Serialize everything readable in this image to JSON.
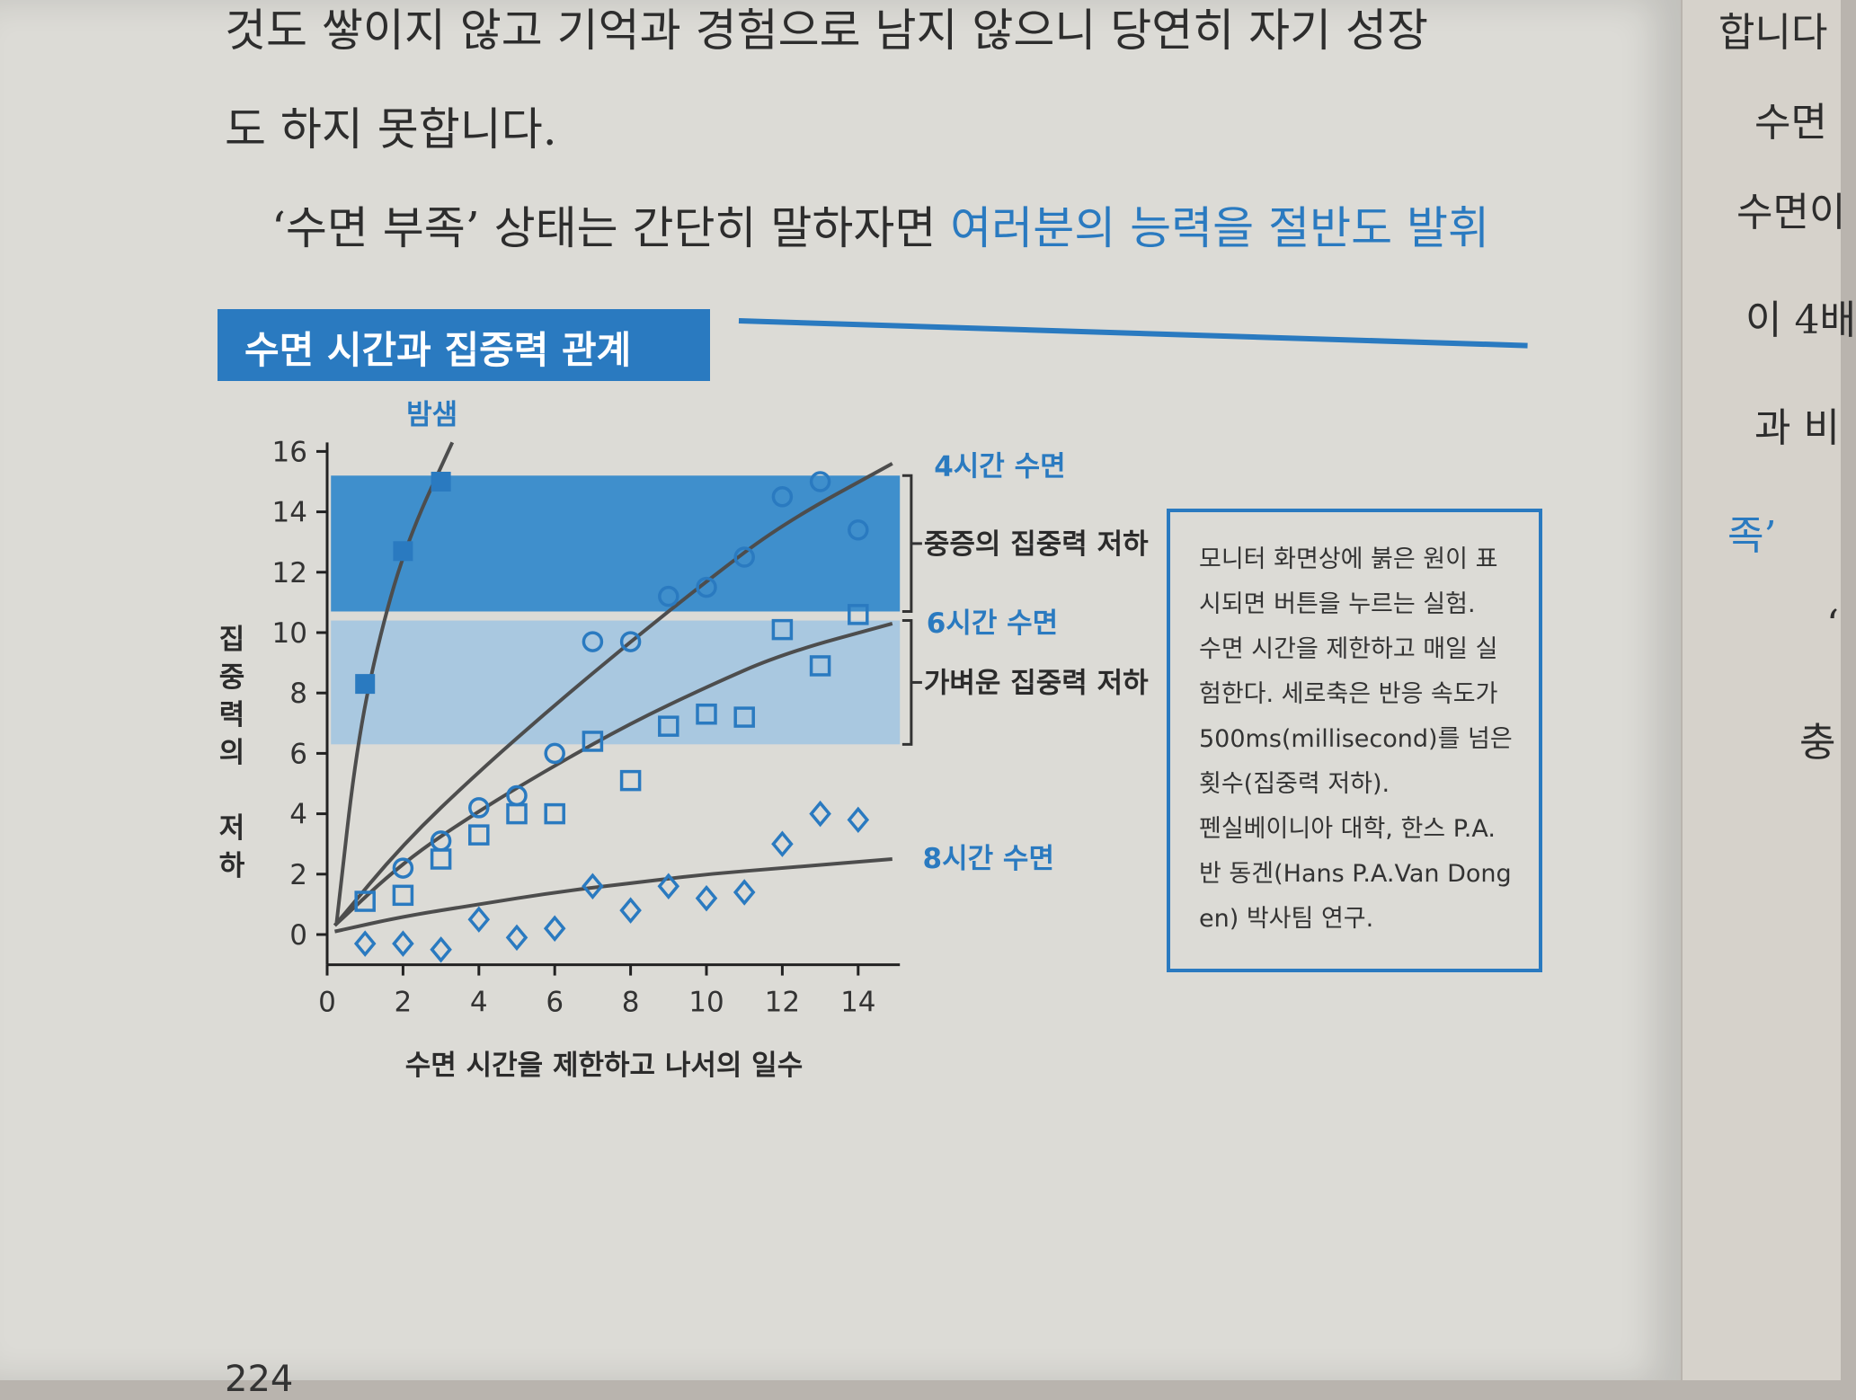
{
  "body_text": {
    "line1": "것도 쌓이지 않고 기억과 경험으로 남지 않으니 당연히 자기 성장",
    "line2": "도 하지 못합니다.",
    "line3_plain": "‘수면 부족’ 상태는 간단히 말하자면",
    "line3_highlight": "여러분의 능력을 절반도 발휘"
  },
  "figure_title": "수면 시간과 집중력 관계",
  "note_lines": [
    "모니터 화면상에 붉은 원이 표",
    "시되면 버튼을 누르는 실험.",
    "수면 시간을 제한하고 매일 실",
    "험한다. 세로축은 반응 속도가",
    "500ms(millisecond)를 넘은",
    "횟수(집중력 저하).",
    "펜실베이니아 대학, 한스 P.A.",
    "반 동겐(Hans P.A.Van Dong",
    "en) 박사팀 연구."
  ],
  "next_page_text": [
    "합니다",
    "수면",
    "수면이",
    "이 4배",
    "과 비",
    "족’",
    "‘",
    "충"
  ],
  "page_number": "224",
  "colors": {
    "accent": "#2a7ac0",
    "band_severe": "#3f8fcc",
    "band_mild": "#a9c8e0",
    "curve": "#4d4d4d"
  },
  "chart_data": {
    "type": "scatter",
    "xlabel": "수면 시간을 제한하고 나서의 일수",
    "ylabel": "집중력의 저하",
    "xlim": [
      0,
      15
    ],
    "ylim": [
      -1,
      16
    ],
    "xticks": [
      "0",
      "2",
      "4",
      "6",
      "8",
      "10",
      "12",
      "14"
    ],
    "yticks": [
      "0",
      "2",
      "4",
      "6",
      "8",
      "10",
      "12",
      "14",
      "16"
    ],
    "bands": [
      {
        "label": "중증의 집중력 저하",
        "y": [
          10.7,
          15.2
        ]
      },
      {
        "label": "가벼운 집중력 저하",
        "y": [
          6.3,
          10.4
        ]
      }
    ],
    "series": [
      {
        "name": "밤샘",
        "marker": "square-filled",
        "points": [
          [
            1,
            8.3
          ],
          [
            2,
            12.7
          ],
          [
            3,
            15.0
          ]
        ]
      },
      {
        "name": "4시간 수면",
        "marker": "circle",
        "points": [
          [
            2,
            2.2
          ],
          [
            3,
            3.1
          ],
          [
            4,
            4.2
          ],
          [
            5,
            4.6
          ],
          [
            6,
            6.0
          ],
          [
            7,
            9.7
          ],
          [
            8,
            9.7
          ],
          [
            9,
            11.2
          ],
          [
            10,
            11.5
          ],
          [
            11,
            12.5
          ],
          [
            12,
            14.5
          ],
          [
            13,
            15.0
          ],
          [
            14,
            13.4
          ]
        ]
      },
      {
        "name": "6시간 수면",
        "marker": "square",
        "points": [
          [
            1,
            1.1
          ],
          [
            2,
            1.3
          ],
          [
            3,
            2.5
          ],
          [
            4,
            3.3
          ],
          [
            5,
            4.0
          ],
          [
            6,
            4.0
          ],
          [
            7,
            6.4
          ],
          [
            8,
            5.1
          ],
          [
            9,
            6.9
          ],
          [
            10,
            7.3
          ],
          [
            11,
            7.2
          ],
          [
            12,
            10.1
          ],
          [
            13,
            8.9
          ],
          [
            14,
            10.6
          ]
        ]
      },
      {
        "name": "8시간 수면",
        "marker": "diamond",
        "points": [
          [
            1,
            -0.3
          ],
          [
            2,
            -0.3
          ],
          [
            3,
            -0.5
          ],
          [
            4,
            0.5
          ],
          [
            5,
            -0.1
          ],
          [
            6,
            0.2
          ],
          [
            7,
            1.6
          ],
          [
            8,
            0.8
          ],
          [
            9,
            1.6
          ],
          [
            10,
            1.2
          ],
          [
            11,
            1.4
          ],
          [
            12,
            3.0
          ],
          [
            13,
            4.0
          ],
          [
            14,
            3.8
          ]
        ]
      }
    ],
    "trend_lines": [
      {
        "name": "밤샘",
        "points": [
          [
            0.25,
            0.4
          ],
          [
            0.8,
            6.5
          ],
          [
            1.5,
            10.5
          ],
          [
            2.2,
            13.3
          ],
          [
            3.3,
            16.3
          ]
        ]
      },
      {
        "name": "4시간 수면",
        "points": [
          [
            0.2,
            0.3
          ],
          [
            2,
            3.0
          ],
          [
            4,
            5.4
          ],
          [
            6,
            7.6
          ],
          [
            8,
            9.7
          ],
          [
            10,
            11.7
          ],
          [
            12,
            13.6
          ],
          [
            14.9,
            15.6
          ]
        ]
      },
      {
        "name": "6시간 수면",
        "points": [
          [
            0.2,
            0.3
          ],
          [
            2,
            2.4
          ],
          [
            4,
            4.1
          ],
          [
            6,
            5.6
          ],
          [
            8,
            7.0
          ],
          [
            10,
            8.2
          ],
          [
            12,
            9.3
          ],
          [
            14.9,
            10.3
          ]
        ]
      },
      {
        "name": "8시간 수면",
        "points": [
          [
            0.2,
            0.1
          ],
          [
            2,
            0.6
          ],
          [
            4,
            1.0
          ],
          [
            6,
            1.4
          ],
          [
            8,
            1.7
          ],
          [
            10,
            2.0
          ],
          [
            12,
            2.2
          ],
          [
            14.9,
            2.5
          ]
        ]
      }
    ]
  }
}
